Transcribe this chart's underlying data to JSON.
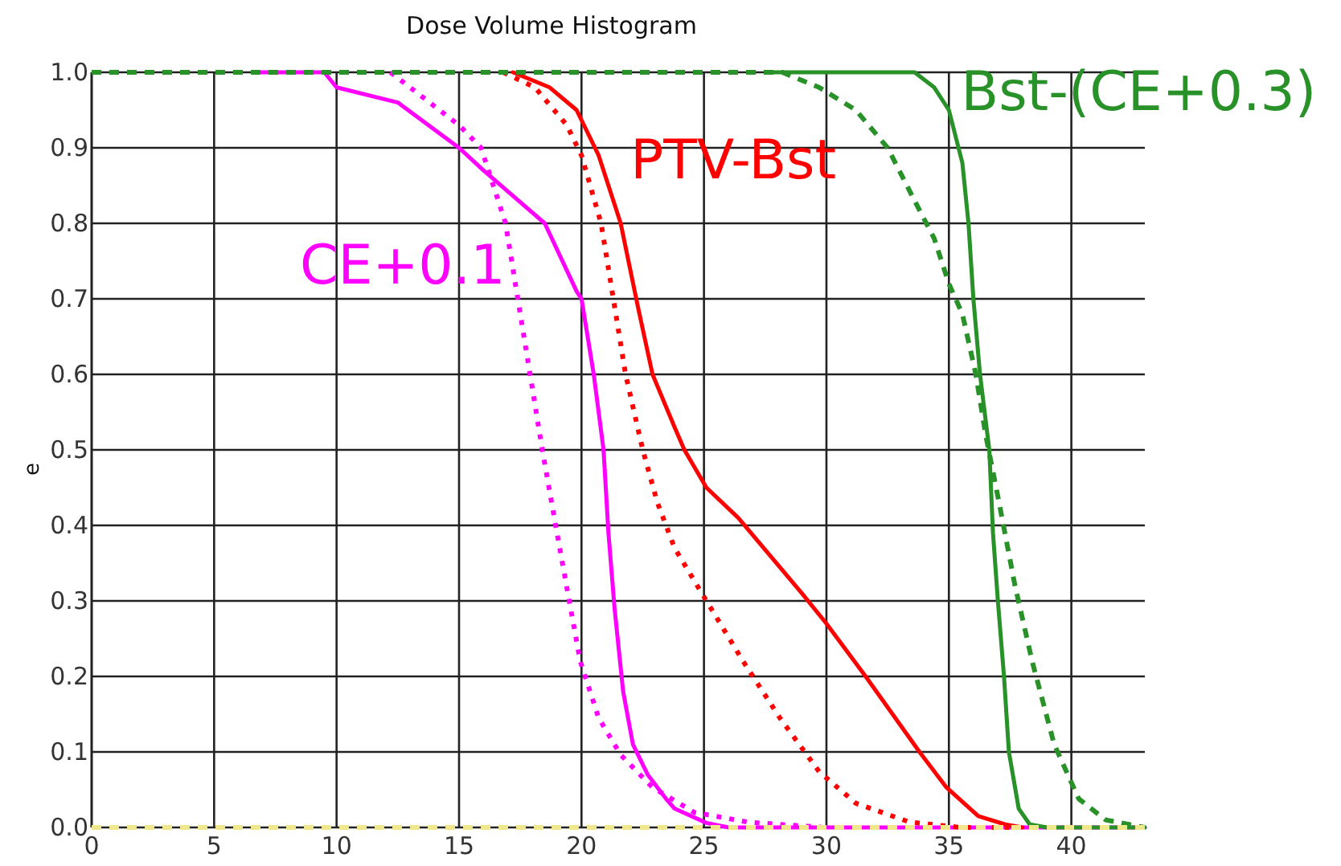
{
  "chart_data": {
    "type": "line",
    "title": "Dose Volume Histogram",
    "ylabel": "e",
    "xlim": [
      0,
      43
    ],
    "ylim": [
      0,
      1
    ],
    "xticks": [
      0,
      5,
      10,
      15,
      20,
      25,
      30,
      35,
      40
    ],
    "yticks": [
      {
        "value": 0,
        "label": "0.0"
      },
      {
        "value": 0.1,
        "label": "0.1"
      },
      {
        "value": 0.2,
        "label": "0.2"
      },
      {
        "value": 0.3,
        "label": "0.3"
      },
      {
        "value": 0.4,
        "label": "0.4"
      },
      {
        "value": 0.5,
        "label": "0.5"
      },
      {
        "value": 0.6,
        "label": "0.6"
      },
      {
        "value": 0.7,
        "label": "0.7"
      },
      {
        "value": 0.8,
        "label": "0.8"
      },
      {
        "value": 0.9,
        "label": "0.9"
      },
      {
        "value": 1,
        "label": "1.0"
      }
    ],
    "grid": true,
    "legend": false,
    "marker": "none",
    "series": [
      {
        "name": "CE+0.1",
        "color": "#ff00ff",
        "line_style": "solid",
        "x": [
          6.9,
          9.5,
          10,
          12.5,
          15,
          16,
          18.5,
          19.8,
          20,
          20.5,
          20.9,
          21.1,
          21.35,
          21.7,
          22.1,
          22.7,
          23.5,
          23.8,
          25.1,
          26,
          43
        ],
        "values": [
          1,
          1,
          0.98,
          0.96,
          0.9,
          0.87,
          0.8,
          0.71,
          0.7,
          0.6,
          0.5,
          0.39,
          0.29,
          0.18,
          0.11,
          0.07,
          0.036,
          0.025,
          0.006,
          0,
          0
        ]
      },
      {
        "color": "#ff00ff",
        "line_style": "dotted",
        "x": [
          12.2,
          15,
          15.9,
          16.9,
          17.4,
          17.9,
          18.4,
          19,
          19.5,
          19.95,
          20.7,
          21.6,
          22.9,
          24.6,
          26.8,
          29.9
        ],
        "values": [
          1,
          0.93,
          0.9,
          0.8,
          0.7,
          0.6,
          0.5,
          0.39,
          0.3,
          0.22,
          0.145,
          0.096,
          0.053,
          0.02,
          0.007,
          0
        ]
      },
      {
        "name": "PTV-Bst",
        "color": "#ff0000",
        "line_style": "solid",
        "x": [
          17.2,
          18.7,
          19.8,
          20.7,
          21.6,
          22.3,
          22.9,
          23.8,
          24.2,
          25.1,
          26.4,
          27.7,
          29,
          30,
          31.6,
          32.7,
          33.8,
          34.9,
          36.2,
          37.3,
          38
        ],
        "values": [
          1,
          0.98,
          0.95,
          0.89,
          0.8,
          0.69,
          0.6,
          0.53,
          0.5,
          0.45,
          0.41,
          0.36,
          0.31,
          0.27,
          0.2,
          0.15,
          0.1,
          0.053,
          0.015,
          0.004,
          0
        ]
      },
      {
        "color": "#ff0000",
        "line_style": "dotted",
        "x": [
          16.8,
          18.1,
          19.4,
          20,
          20.8,
          21.35,
          21.8,
          22.5,
          23.1,
          23.8,
          25.1,
          26.6,
          28.1,
          29.7,
          31.2,
          33.4,
          35.5,
          37.5
        ],
        "values": [
          1,
          0.98,
          0.93,
          0.89,
          0.8,
          0.69,
          0.6,
          0.5,
          0.43,
          0.37,
          0.3,
          0.22,
          0.145,
          0.074,
          0.032,
          0.007,
          0,
          0
        ]
      },
      {
        "name": "Bst-(CE+0.3)",
        "color": "#289128",
        "line_style": "solid",
        "x": [
          27.7,
          33.6,
          34.4,
          35,
          35.55,
          35.8,
          36,
          36.27,
          36.65,
          36.8,
          37,
          37.25,
          37.45,
          37.85,
          38.3,
          39,
          43
        ],
        "values": [
          1,
          1,
          0.98,
          0.95,
          0.88,
          0.8,
          0.7,
          0.6,
          0.5,
          0.39,
          0.3,
          0.2,
          0.1,
          0.025,
          0.004,
          0,
          0
        ]
      },
      {
        "color": "#289128",
        "line_style": "dashed",
        "x": [
          0,
          28.2,
          29.7,
          31.2,
          32.5,
          33.6,
          34.4,
          35,
          35.55,
          36.1,
          36.5,
          37.05,
          37.7,
          38.4,
          39.3,
          40.3,
          41.4,
          43
        ],
        "values": [
          1,
          1,
          0.98,
          0.95,
          0.9,
          0.83,
          0.78,
          0.72,
          0.68,
          0.6,
          0.52,
          0.43,
          0.32,
          0.22,
          0.11,
          0.038,
          0.01,
          0
        ]
      },
      {
        "color": "#f0e68c",
        "line_style": "dashed",
        "x": [
          0,
          43
        ],
        "values": [
          0,
          0
        ]
      }
    ]
  }
}
